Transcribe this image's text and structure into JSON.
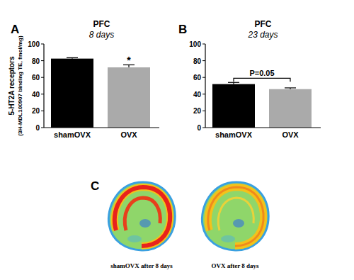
{
  "chart_data": [
    {
      "type": "bar",
      "panel": "A",
      "title": "PFC",
      "subtitle": "8 days",
      "ylabel": [
        "5-HT2A receptors",
        "(3H-MDL100907 binding TE, fmol/mg)"
      ],
      "categories": [
        "shamOVX",
        "OVX"
      ],
      "values": [
        82.5,
        72
      ],
      "errors": [
        1,
        3
      ],
      "colors": [
        "#000000",
        "#aaaaaa"
      ],
      "ylim": [
        0,
        100
      ],
      "yticks": [
        0,
        20,
        40,
        60,
        80,
        100
      ],
      "grid": false,
      "annotations": [
        {
          "text": "*",
          "category": "OVX"
        }
      ]
    },
    {
      "type": "bar",
      "panel": "B",
      "title": "PFC",
      "subtitle": "23 days",
      "categories": [
        "shamOVX",
        "OVX"
      ],
      "values": [
        52,
        46
      ],
      "errors": [
        2,
        1.5
      ],
      "colors": [
        "#000000",
        "#aaaaaa"
      ],
      "ylim": [
        0,
        100
      ],
      "yticks": [
        0,
        20,
        40,
        60,
        80,
        100
      ],
      "grid": false,
      "annotations": [
        {
          "text": "P=0.05",
          "bracket": [
            "shamOVX",
            "OVX"
          ]
        }
      ]
    }
  ],
  "figure": {
    "panel_c": {
      "label": "C",
      "captions": [
        "shamOVX after 8 days",
        "OVX after 8 days"
      ]
    }
  }
}
